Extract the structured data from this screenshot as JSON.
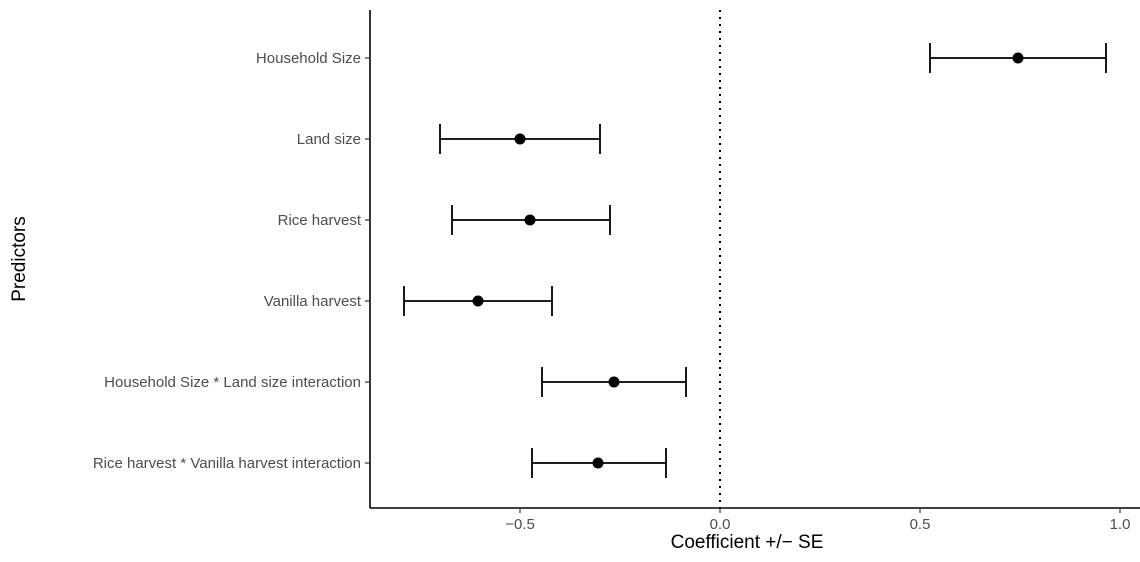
{
  "chart_data": {
    "type": "scatter",
    "xlabel": "Coefficient +/− SE",
    "ylabel": "Predictors",
    "xlim": [
      -0.875,
      1.05
    ],
    "xticks": [
      {
        "value": -0.5,
        "label": "−0.5"
      },
      {
        "value": 0.0,
        "label": "0.0"
      },
      {
        "value": 0.5,
        "label": "0.5"
      },
      {
        "value": 1.0,
        "label": "1.0"
      }
    ],
    "reference_line": {
      "x": 0,
      "style": "dotted"
    },
    "grid": false,
    "legend": "none",
    "predictors": [
      {
        "label": "Household Size",
        "estimate": 0.745,
        "lower": 0.525,
        "upper": 0.965
      },
      {
        "label": "Land size",
        "estimate": -0.5,
        "lower": -0.7,
        "upper": -0.3
      },
      {
        "label": "Rice harvest",
        "estimate": -0.475,
        "lower": -0.67,
        "upper": -0.275
      },
      {
        "label": "Vanilla harvest",
        "estimate": -0.605,
        "lower": -0.79,
        "upper": -0.42
      },
      {
        "label": "Household Size * Land size interaction",
        "estimate": -0.265,
        "lower": -0.445,
        "upper": -0.085
      },
      {
        "label": "Rice harvest * Vanilla harvest interaction",
        "estimate": -0.305,
        "lower": -0.47,
        "upper": -0.135
      }
    ],
    "colors": {
      "point": "#000000",
      "errorbar": "#000000",
      "tick_label": "#4d4d4d"
    }
  }
}
